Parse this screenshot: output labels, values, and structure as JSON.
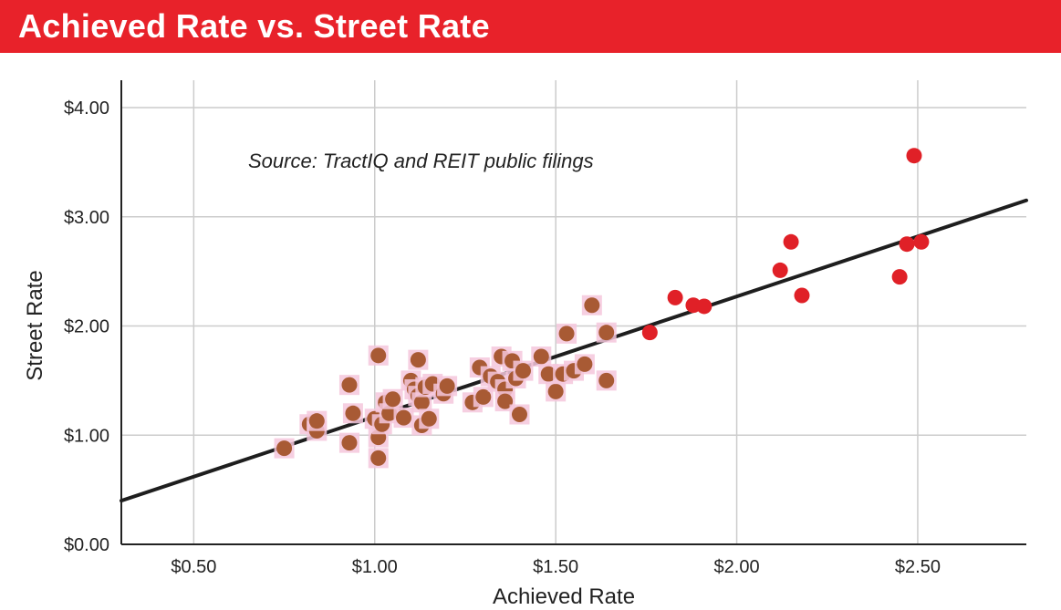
{
  "header": {
    "title": "Achieved Rate vs. Street Rate"
  },
  "chart_data": {
    "type": "scatter",
    "title": "Achieved Rate vs. Street Rate",
    "xlabel": "Achieved Rate",
    "ylabel": "Street Rate",
    "annotation": "Source: TractIQ and REIT public filings",
    "xlim": [
      0.3,
      2.8
    ],
    "ylim": [
      0,
      4.0
    ],
    "xticks": [
      0.5,
      1.0,
      1.5,
      2.0,
      2.5
    ],
    "xtick_labels": [
      "$0.50",
      "$1.00",
      "$1.50",
      "$2.00",
      "$2.50"
    ],
    "yticks": [
      0,
      1,
      2,
      3,
      4
    ],
    "ytick_labels": [
      "$0.00",
      "$1.00",
      "$2.00",
      "$3.00",
      "$4.00"
    ],
    "grid": true,
    "trendline": {
      "x": [
        0.3,
        2.8
      ],
      "y": [
        0.4,
        3.15
      ]
    },
    "points": [
      {
        "x": 0.75,
        "y": 0.88
      },
      {
        "x": 0.82,
        "y": 1.1
      },
      {
        "x": 0.84,
        "y": 1.04
      },
      {
        "x": 0.84,
        "y": 1.13
      },
      {
        "x": 0.93,
        "y": 0.93
      },
      {
        "x": 0.93,
        "y": 1.46
      },
      {
        "x": 0.94,
        "y": 1.2
      },
      {
        "x": 1.0,
        "y": 1.15
      },
      {
        "x": 1.01,
        "y": 0.98
      },
      {
        "x": 1.01,
        "y": 0.79
      },
      {
        "x": 1.01,
        "y": 1.73
      },
      {
        "x": 1.02,
        "y": 1.1
      },
      {
        "x": 1.03,
        "y": 1.3
      },
      {
        "x": 1.04,
        "y": 1.2
      },
      {
        "x": 1.05,
        "y": 1.33
      },
      {
        "x": 1.08,
        "y": 1.16
      },
      {
        "x": 1.1,
        "y": 1.5
      },
      {
        "x": 1.11,
        "y": 1.42
      },
      {
        "x": 1.12,
        "y": 1.36
      },
      {
        "x": 1.12,
        "y": 1.69
      },
      {
        "x": 1.13,
        "y": 1.3
      },
      {
        "x": 1.13,
        "y": 1.09
      },
      {
        "x": 1.14,
        "y": 1.44
      },
      {
        "x": 1.15,
        "y": 1.15
      },
      {
        "x": 1.16,
        "y": 1.47
      },
      {
        "x": 1.19,
        "y": 1.38
      },
      {
        "x": 1.2,
        "y": 1.45
      },
      {
        "x": 1.27,
        "y": 1.3
      },
      {
        "x": 1.29,
        "y": 1.62
      },
      {
        "x": 1.3,
        "y": 1.35
      },
      {
        "x": 1.32,
        "y": 1.54
      },
      {
        "x": 1.34,
        "y": 1.49
      },
      {
        "x": 1.35,
        "y": 1.72
      },
      {
        "x": 1.36,
        "y": 1.42
      },
      {
        "x": 1.36,
        "y": 1.31
      },
      {
        "x": 1.38,
        "y": 1.68
      },
      {
        "x": 1.39,
        "y": 1.52
      },
      {
        "x": 1.4,
        "y": 1.19
      },
      {
        "x": 1.41,
        "y": 1.59
      },
      {
        "x": 1.46,
        "y": 1.72
      },
      {
        "x": 1.48,
        "y": 1.56
      },
      {
        "x": 1.5,
        "y": 1.4
      },
      {
        "x": 1.52,
        "y": 1.56
      },
      {
        "x": 1.53,
        "y": 1.93
      },
      {
        "x": 1.55,
        "y": 1.59
      },
      {
        "x": 1.58,
        "y": 1.65
      },
      {
        "x": 1.6,
        "y": 2.19
      },
      {
        "x": 1.64,
        "y": 1.94
      },
      {
        "x": 1.64,
        "y": 1.5
      },
      {
        "x": 1.76,
        "y": 1.94
      },
      {
        "x": 1.83,
        "y": 2.26
      },
      {
        "x": 1.88,
        "y": 2.19
      },
      {
        "x": 1.91,
        "y": 2.18
      },
      {
        "x": 2.12,
        "y": 2.51
      },
      {
        "x": 2.15,
        "y": 2.77
      },
      {
        "x": 2.18,
        "y": 2.28
      },
      {
        "x": 2.45,
        "y": 2.45
      },
      {
        "x": 2.47,
        "y": 2.75
      },
      {
        "x": 2.49,
        "y": 3.56
      },
      {
        "x": 2.51,
        "y": 2.77
      }
    ],
    "colors": {
      "point_fill": "#e02027",
      "point_halo": "#f4c7dc",
      "point_fill_dark": "#a85a34",
      "trendline": "#1e1e1e",
      "grid": "#cccccc",
      "axis": "#222222"
    }
  }
}
